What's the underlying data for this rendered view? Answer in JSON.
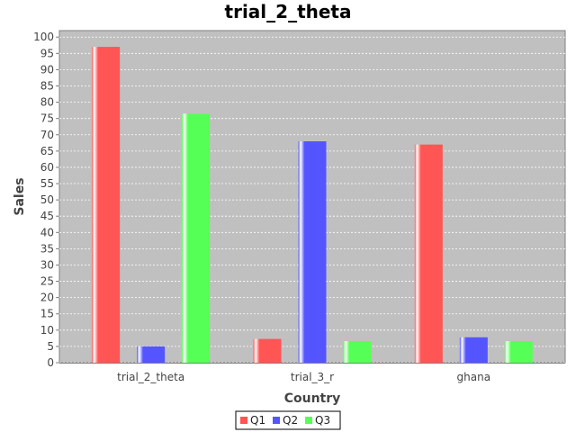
{
  "chart_data": {
    "type": "bar",
    "title": "trial_2_theta",
    "xlabel": "Country",
    "ylabel": "Sales",
    "categories": [
      "trial_2_theta",
      "trial_3_r",
      "ghana"
    ],
    "series": [
      {
        "name": "Q1",
        "color": "#ff5555",
        "values": [
          97,
          7.3,
          67
        ]
      },
      {
        "name": "Q2",
        "color": "#5555ff",
        "values": [
          5,
          68,
          7.8
        ]
      },
      {
        "name": "Q3",
        "color": "#55ff55",
        "values": [
          76.5,
          6.6,
          6.6
        ]
      }
    ],
    "ylim": [
      0,
      102
    ],
    "yticks": [
      0,
      5,
      10,
      15,
      20,
      25,
      30,
      35,
      40,
      45,
      50,
      55,
      60,
      65,
      70,
      75,
      80,
      85,
      90,
      95,
      100
    ],
    "grid": true,
    "legend": "bottom-center",
    "plot_background": "#c0c0c0"
  }
}
